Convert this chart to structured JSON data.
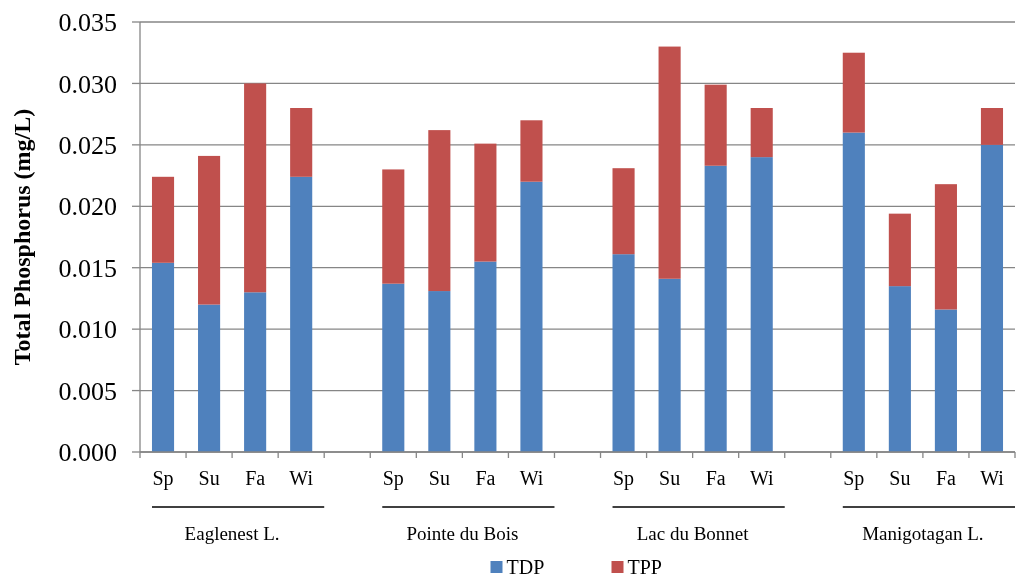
{
  "chart_data": {
    "type": "bar",
    "stacked": true,
    "ylabel": "Total Phosphorus (mg/L)",
    "categories": [
      "Sp",
      "Su",
      "Fa",
      "Wi",
      null,
      "Sp",
      "Su",
      "Fa",
      "Wi",
      null,
      "Sp",
      "Su",
      "Fa",
      "Wi",
      null,
      "Sp",
      "Su",
      "Fa",
      "Wi"
    ],
    "series": [
      {
        "name": "TDP",
        "color": "#4f81bd",
        "values": [
          0.0154,
          0.012,
          0.013,
          0.0224,
          null,
          0.0137,
          0.0131,
          0.0155,
          0.022,
          null,
          0.0161,
          0.0141,
          0.0233,
          0.024,
          null,
          0.026,
          0.0135,
          0.0116,
          0.025
        ]
      },
      {
        "name": "TPP",
        "color": "#c0504d",
        "values": [
          0.007,
          0.0121,
          0.017,
          0.0056,
          null,
          0.0093,
          0.0131,
          0.0096,
          0.005,
          null,
          0.007,
          0.0189,
          0.0066,
          0.004,
          null,
          0.0065,
          0.0059,
          0.0102,
          0.003
        ]
      }
    ],
    "ylim": [
      0,
      0.035
    ],
    "yticks": [
      {
        "value": 0,
        "label": "0.000"
      },
      0.005,
      {
        "value": 0.01,
        "label": "0.010"
      },
      0.015,
      {
        "value": 0.02,
        "label": "0.020"
      },
      0.025,
      {
        "value": 0.03,
        "label": "0.030"
      },
      0.035
    ],
    "grid": "y",
    "legend": "bottom",
    "annotations": [
      "Eaglenest L.",
      "Pointe du Bois",
      "Lac du Bonnet",
      "Manigotagan L."
    ]
  }
}
